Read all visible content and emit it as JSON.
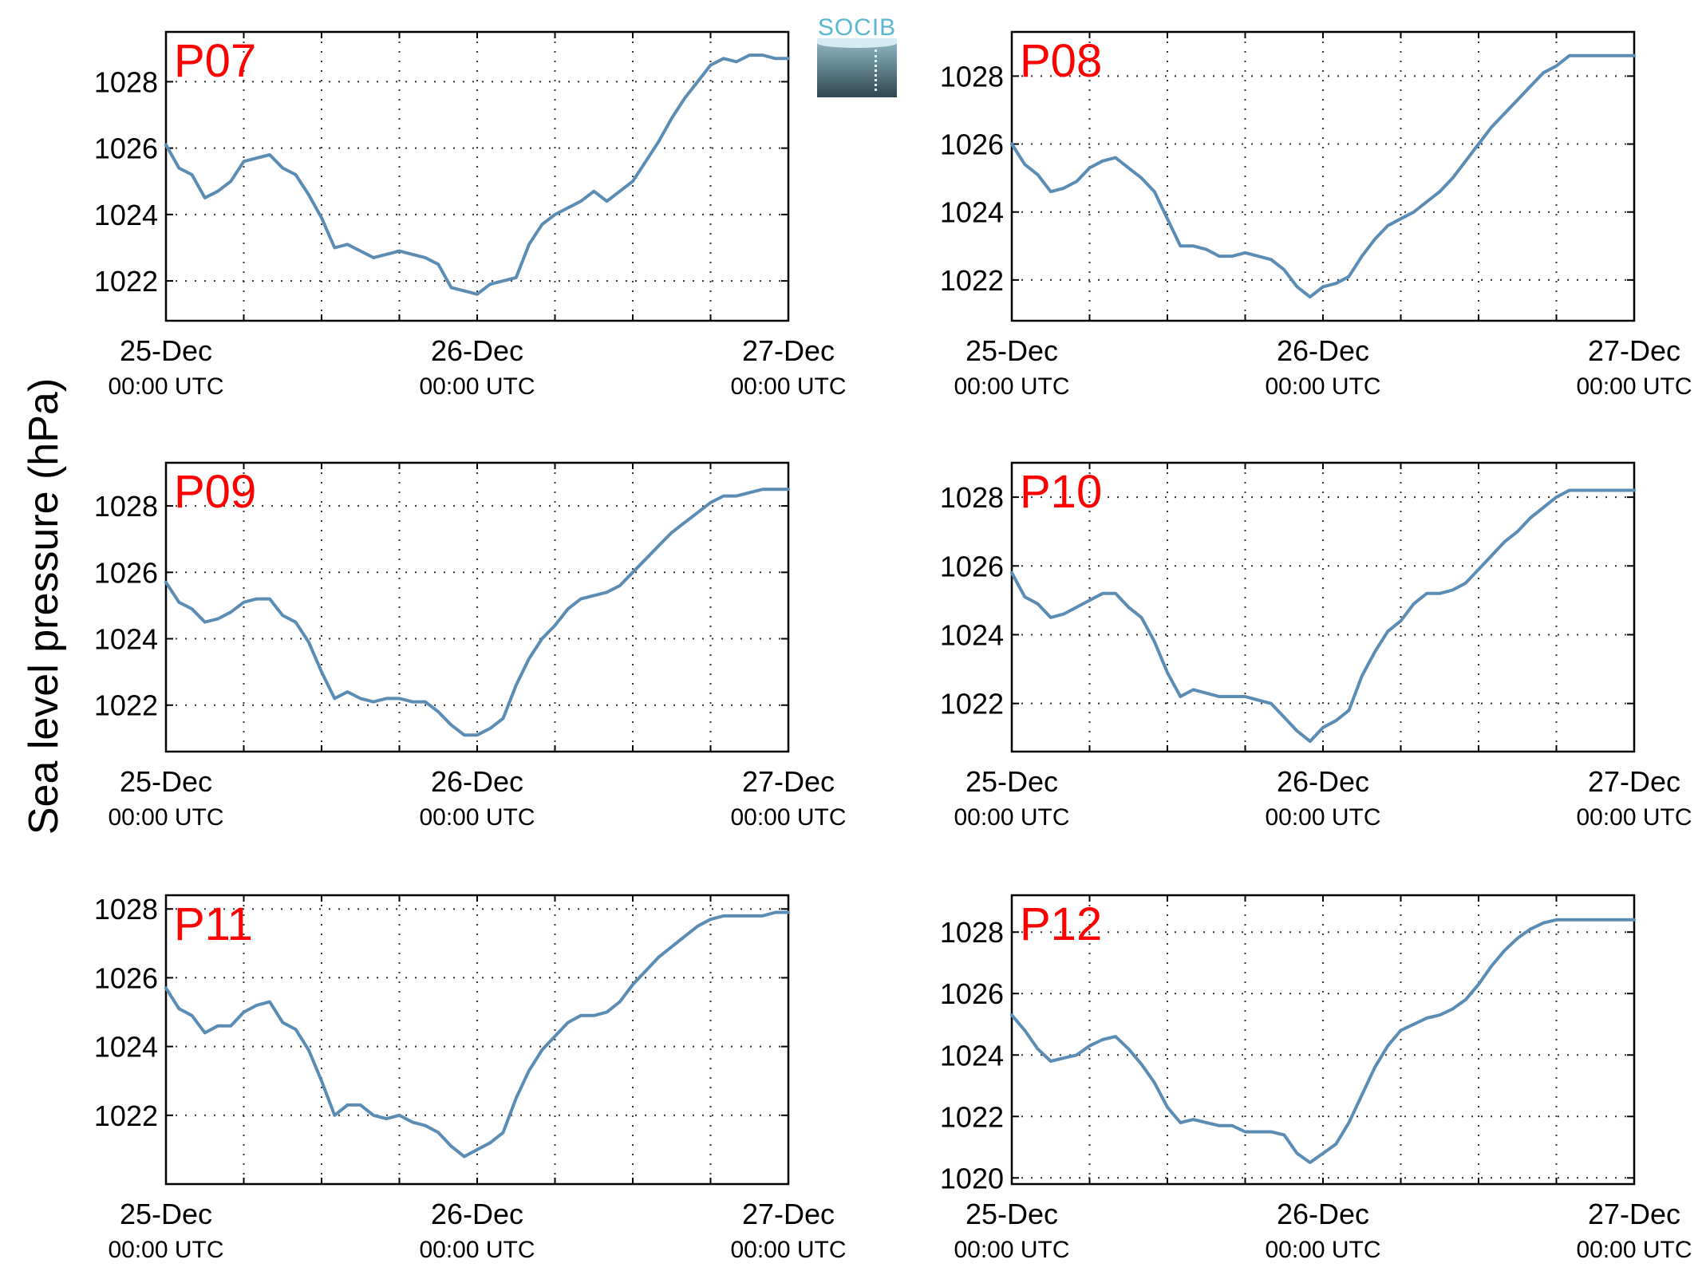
{
  "figure": {
    "ylabel": "Sea level pressure (hPa)",
    "logo_text": "SOCIB",
    "colors": {
      "line": "#5b8db4",
      "panel_label": "#ff0000",
      "axis": "#000000",
      "grid": "#333333",
      "logo_text": "#5ab7cf"
    }
  },
  "chart_data": [
    {
      "type": "line",
      "label": "P07",
      "xlim": [
        0,
        48
      ],
      "ylim": [
        1020.8,
        1029.5
      ],
      "yticks": [
        "1022",
        "1024",
        "1026",
        "1028"
      ],
      "xticks": [
        {
          "date": "25-Dec",
          "time": "00:00 UTC"
        },
        {
          "date": "26-Dec",
          "time": "00:00 UTC"
        },
        {
          "date": "27-Dec",
          "time": "00:00 UTC"
        }
      ],
      "grid": true,
      "series": [
        {
          "x": [
            0,
            1,
            2,
            3,
            4,
            5,
            6,
            7,
            8,
            9,
            10,
            11,
            12,
            13,
            14,
            15,
            16,
            17,
            18,
            19,
            20,
            21,
            22,
            23,
            24,
            25,
            26,
            27,
            28,
            29,
            30,
            31,
            32,
            33,
            34,
            35,
            36,
            37,
            38,
            39,
            40,
            41,
            42,
            43,
            44,
            45,
            46,
            47,
            48
          ],
          "values": [
            1026.1,
            1025.4,
            1025.2,
            1024.5,
            1024.7,
            1025.0,
            1025.6,
            1025.7,
            1025.8,
            1025.4,
            1025.2,
            1024.6,
            1023.9,
            1023.0,
            1023.1,
            1022.9,
            1022.7,
            1022.8,
            1022.9,
            1022.8,
            1022.7,
            1022.5,
            1021.8,
            1021.7,
            1021.6,
            1021.9,
            1022.0,
            1022.1,
            1023.1,
            1023.7,
            1024.0,
            1024.2,
            1024.4,
            1024.7,
            1024.4,
            1024.7,
            1025.0,
            1025.6,
            1026.2,
            1026.9,
            1027.5,
            1028.0,
            1028.5,
            1028.7,
            1028.6,
            1028.8,
            1028.8,
            1028.7,
            1028.7
          ]
        }
      ]
    },
    {
      "type": "line",
      "label": "P08",
      "xlim": [
        0,
        48
      ],
      "ylim": [
        1020.8,
        1029.3
      ],
      "yticks": [
        "1022",
        "1024",
        "1026",
        "1028"
      ],
      "xticks": [
        {
          "date": "25-Dec",
          "time": "00:00 UTC"
        },
        {
          "date": "26-Dec",
          "time": "00:00 UTC"
        },
        {
          "date": "27-Dec",
          "time": "00:00 UTC"
        }
      ],
      "grid": true,
      "series": [
        {
          "x": [
            0,
            1,
            2,
            3,
            4,
            5,
            6,
            7,
            8,
            9,
            10,
            11,
            12,
            13,
            14,
            15,
            16,
            17,
            18,
            19,
            20,
            21,
            22,
            23,
            24,
            25,
            26,
            27,
            28,
            29,
            30,
            31,
            32,
            33,
            34,
            35,
            36,
            37,
            38,
            39,
            40,
            41,
            42,
            43,
            44,
            45,
            46,
            47,
            48
          ],
          "values": [
            1026.0,
            1025.4,
            1025.1,
            1024.6,
            1024.7,
            1024.9,
            1025.3,
            1025.5,
            1025.6,
            1025.3,
            1025.0,
            1024.6,
            1023.8,
            1023.0,
            1023.0,
            1022.9,
            1022.7,
            1022.7,
            1022.8,
            1022.7,
            1022.6,
            1022.3,
            1021.8,
            1021.5,
            1021.8,
            1021.9,
            1022.1,
            1022.7,
            1023.2,
            1023.6,
            1023.8,
            1024.0,
            1024.3,
            1024.6,
            1025.0,
            1025.5,
            1026.0,
            1026.5,
            1026.9,
            1027.3,
            1027.7,
            1028.1,
            1028.3,
            1028.6,
            1028.6,
            1028.6,
            1028.6,
            1028.6,
            1028.6
          ]
        }
      ]
    },
    {
      "type": "line",
      "label": "P09",
      "xlim": [
        0,
        48
      ],
      "ylim": [
        1020.6,
        1029.3
      ],
      "yticks": [
        "1022",
        "1024",
        "1026",
        "1028"
      ],
      "xticks": [
        {
          "date": "25-Dec",
          "time": "00:00 UTC"
        },
        {
          "date": "26-Dec",
          "time": "00:00 UTC"
        },
        {
          "date": "27-Dec",
          "time": "00:00 UTC"
        }
      ],
      "grid": true,
      "series": [
        {
          "x": [
            0,
            1,
            2,
            3,
            4,
            5,
            6,
            7,
            8,
            9,
            10,
            11,
            12,
            13,
            14,
            15,
            16,
            17,
            18,
            19,
            20,
            21,
            22,
            23,
            24,
            25,
            26,
            27,
            28,
            29,
            30,
            31,
            32,
            33,
            34,
            35,
            36,
            37,
            38,
            39,
            40,
            41,
            42,
            43,
            44,
            45,
            46,
            47,
            48
          ],
          "values": [
            1025.7,
            1025.1,
            1024.9,
            1024.5,
            1024.6,
            1024.8,
            1025.1,
            1025.2,
            1025.2,
            1024.7,
            1024.5,
            1023.9,
            1023.0,
            1022.2,
            1022.4,
            1022.2,
            1022.1,
            1022.2,
            1022.2,
            1022.1,
            1022.1,
            1021.8,
            1021.4,
            1021.1,
            1021.1,
            1021.3,
            1021.6,
            1022.6,
            1023.4,
            1024.0,
            1024.4,
            1024.9,
            1025.2,
            1025.3,
            1025.4,
            1025.6,
            1026.0,
            1026.4,
            1026.8,
            1027.2,
            1027.5,
            1027.8,
            1028.1,
            1028.3,
            1028.3,
            1028.4,
            1028.5,
            1028.5,
            1028.5
          ]
        }
      ]
    },
    {
      "type": "line",
      "label": "P10",
      "xlim": [
        0,
        48
      ],
      "ylim": [
        1020.6,
        1029.0
      ],
      "yticks": [
        "1022",
        "1024",
        "1026",
        "1028"
      ],
      "xticks": [
        {
          "date": "25-Dec",
          "time": "00:00 UTC"
        },
        {
          "date": "26-Dec",
          "time": "00:00 UTC"
        },
        {
          "date": "27-Dec",
          "time": "00:00 UTC"
        }
      ],
      "grid": true,
      "series": [
        {
          "x": [
            0,
            1,
            2,
            3,
            4,
            5,
            6,
            7,
            8,
            9,
            10,
            11,
            12,
            13,
            14,
            15,
            16,
            17,
            18,
            19,
            20,
            21,
            22,
            23,
            24,
            25,
            26,
            27,
            28,
            29,
            30,
            31,
            32,
            33,
            34,
            35,
            36,
            37,
            38,
            39,
            40,
            41,
            42,
            43,
            44,
            45,
            46,
            47,
            48
          ],
          "values": [
            1025.8,
            1025.1,
            1024.9,
            1024.5,
            1024.6,
            1024.8,
            1025.0,
            1025.2,
            1025.2,
            1024.8,
            1024.5,
            1023.8,
            1022.9,
            1022.2,
            1022.4,
            1022.3,
            1022.2,
            1022.2,
            1022.2,
            1022.1,
            1022.0,
            1021.6,
            1021.2,
            1020.9,
            1021.3,
            1021.5,
            1021.8,
            1022.8,
            1023.5,
            1024.1,
            1024.4,
            1024.9,
            1025.2,
            1025.2,
            1025.3,
            1025.5,
            1025.9,
            1026.3,
            1026.7,
            1027.0,
            1027.4,
            1027.7,
            1028.0,
            1028.2,
            1028.2,
            1028.2,
            1028.2,
            1028.2,
            1028.2
          ]
        }
      ]
    },
    {
      "type": "line",
      "label": "P11",
      "xlim": [
        0,
        48
      ],
      "ylim": [
        1020.0,
        1028.4
      ],
      "yticks": [
        "1022",
        "1024",
        "1026",
        "1028"
      ],
      "xticks": [
        {
          "date": "25-Dec",
          "time": "00:00 UTC"
        },
        {
          "date": "26-Dec",
          "time": "00:00 UTC"
        },
        {
          "date": "27-Dec",
          "time": "00:00 UTC"
        }
      ],
      "grid": true,
      "series": [
        {
          "x": [
            0,
            1,
            2,
            3,
            4,
            5,
            6,
            7,
            8,
            9,
            10,
            11,
            12,
            13,
            14,
            15,
            16,
            17,
            18,
            19,
            20,
            21,
            22,
            23,
            24,
            25,
            26,
            27,
            28,
            29,
            30,
            31,
            32,
            33,
            34,
            35,
            36,
            37,
            38,
            39,
            40,
            41,
            42,
            43,
            44,
            45,
            46,
            47,
            48
          ],
          "values": [
            1025.7,
            1025.1,
            1024.9,
            1024.4,
            1024.6,
            1024.6,
            1025.0,
            1025.2,
            1025.3,
            1024.7,
            1024.5,
            1023.9,
            1023.0,
            1022.0,
            1022.3,
            1022.3,
            1022.0,
            1021.9,
            1022.0,
            1021.8,
            1021.7,
            1021.5,
            1021.1,
            1020.8,
            1021.0,
            1021.2,
            1021.5,
            1022.5,
            1023.3,
            1023.9,
            1024.3,
            1024.7,
            1024.9,
            1024.9,
            1025.0,
            1025.3,
            1025.8,
            1026.2,
            1026.6,
            1026.9,
            1027.2,
            1027.5,
            1027.7,
            1027.8,
            1027.8,
            1027.8,
            1027.8,
            1027.9,
            1027.9
          ]
        }
      ]
    },
    {
      "type": "line",
      "label": "P12",
      "xlim": [
        0,
        48
      ],
      "ylim": [
        1019.8,
        1029.2
      ],
      "yticks": [
        "1020",
        "1022",
        "1024",
        "1026",
        "1028"
      ],
      "xticks": [
        {
          "date": "25-Dec",
          "time": "00:00 UTC"
        },
        {
          "date": "26-Dec",
          "time": "00:00 UTC"
        },
        {
          "date": "27-Dec",
          "time": "00:00 UTC"
        }
      ],
      "grid": true,
      "series": [
        {
          "x": [
            0,
            1,
            2,
            3,
            4,
            5,
            6,
            7,
            8,
            9,
            10,
            11,
            12,
            13,
            14,
            15,
            16,
            17,
            18,
            19,
            20,
            21,
            22,
            23,
            24,
            25,
            26,
            27,
            28,
            29,
            30,
            31,
            32,
            33,
            34,
            35,
            36,
            37,
            38,
            39,
            40,
            41,
            42,
            43,
            44,
            45,
            46,
            47,
            48
          ],
          "values": [
            1025.3,
            1024.8,
            1024.2,
            1023.8,
            1023.9,
            1024.0,
            1024.3,
            1024.5,
            1024.6,
            1024.2,
            1023.7,
            1023.1,
            1022.3,
            1021.8,
            1021.9,
            1021.8,
            1021.7,
            1021.7,
            1021.5,
            1021.5,
            1021.5,
            1021.4,
            1020.8,
            1020.5,
            1020.8,
            1021.1,
            1021.8,
            1022.7,
            1023.6,
            1024.3,
            1024.8,
            1025.0,
            1025.2,
            1025.3,
            1025.5,
            1025.8,
            1026.3,
            1026.9,
            1027.4,
            1027.8,
            1028.1,
            1028.3,
            1028.4,
            1028.4,
            1028.4,
            1028.4,
            1028.4,
            1028.4,
            1028.4
          ]
        }
      ]
    }
  ]
}
